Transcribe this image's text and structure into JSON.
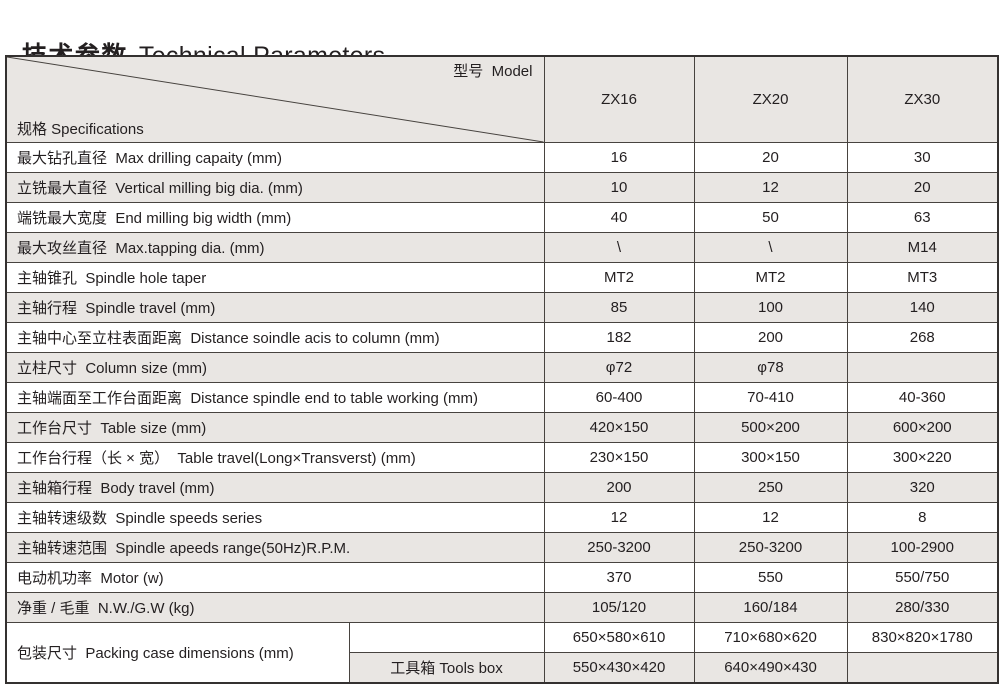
{
  "title": {
    "zh": "技术参数",
    "en": "Technical Parameters"
  },
  "colors": {
    "row_alt_bg": "#e9e6e3",
    "row_bg": "#ffffff",
    "border": "#47433f",
    "outer_border": "#343130",
    "text": "#231f20"
  },
  "table": {
    "header": {
      "spec_label": "规格 Specifications",
      "model_label": "型号  Model",
      "columns": [
        "ZX16",
        "ZX20",
        "ZX30"
      ]
    },
    "rows": [
      {
        "label": "最大钻孔直径  Max drilling capaity (mm)",
        "values": [
          "16",
          "20",
          "30"
        ]
      },
      {
        "label": "立铣最大直径  Vertical milling big dia. (mm)",
        "values": [
          "10",
          "12",
          "20"
        ]
      },
      {
        "label": "端铣最大宽度  End milling big width (mm)",
        "values": [
          "40",
          "50",
          "63"
        ]
      },
      {
        "label": "最大攻丝直径  Max.tapping dia. (mm)",
        "values": [
          "\\",
          "\\",
          "M14"
        ]
      },
      {
        "label": "主轴锥孔  Spindle hole taper",
        "values": [
          "MT2",
          "MT2",
          "MT3"
        ]
      },
      {
        "label": "主轴行程  Spindle travel (mm)",
        "values": [
          "85",
          "100",
          "140"
        ]
      },
      {
        "label": "主轴中心至立柱表面距离  Distance soindle acis to column (mm)",
        "values": [
          "182",
          "200",
          "268"
        ]
      },
      {
        "label": "立柱尺寸  Column size (mm)",
        "values": [
          "φ72",
          "φ78",
          ""
        ]
      },
      {
        "label": "主轴端面至工作台面距离  Distance spindle end to table working (mm)",
        "values": [
          "60-400",
          "70-410",
          "40-360"
        ]
      },
      {
        "label": "工作台尺寸  Table size (mm)",
        "values": [
          "420×150",
          "500×200",
          "600×200"
        ]
      },
      {
        "label": "工作台行程（长 × 宽）  Table travel(Long×Transverst) (mm)",
        "values": [
          "230×150",
          "300×150",
          "300×220"
        ]
      },
      {
        "label": "主轴箱行程  Body travel (mm)",
        "values": [
          "200",
          "250",
          "320"
        ]
      },
      {
        "label": "主轴转速级数  Spindle speeds series",
        "values": [
          "12",
          "12",
          "8"
        ]
      },
      {
        "label": "主轴转速范围  Spindle apeeds range(50Hz)R.P.M.",
        "values": [
          "250-3200",
          "250-3200",
          "100-2900"
        ]
      },
      {
        "label": "电动机功率  Motor (w)",
        "values": [
          "370",
          "550",
          "550/750"
        ]
      },
      {
        "label": "净重 / 毛重  N.W./G.W (kg)",
        "values": [
          "105/120",
          "160/184",
          "280/330"
        ]
      }
    ],
    "packing": {
      "label": "包装尺寸  Packing case dimensions (mm)",
      "rows": [
        {
          "sublabel": "",
          "values": [
            "650×580×610",
            "710×680×620",
            "830×820×1780"
          ]
        },
        {
          "sublabel": "工具箱 Tools box",
          "values": [
            "550×430×420",
            "640×490×430",
            ""
          ]
        }
      ]
    }
  }
}
